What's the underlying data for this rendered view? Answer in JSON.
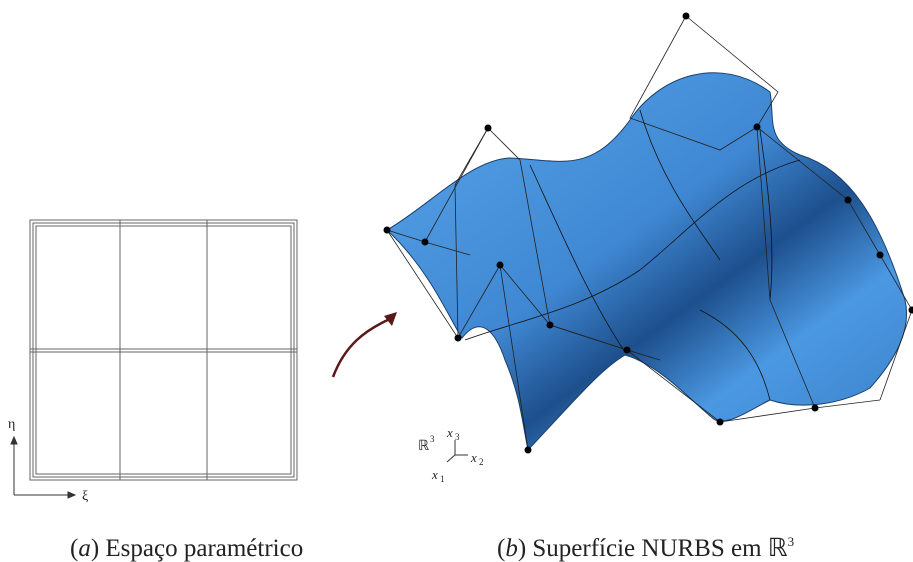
{
  "panel_a": {
    "axes": {
      "vertical": "η",
      "horizontal": "ξ"
    },
    "caption": {
      "open": "(",
      "label": "a",
      "close": ")",
      "text": "Espaço paramétrico"
    }
  },
  "panel_b": {
    "axes": {
      "space": "ℝ",
      "dimension": "3",
      "x1": {
        "symbol": "x",
        "index": "1"
      },
      "x2": {
        "symbol": "x",
        "index": "2"
      },
      "x3": {
        "symbol": "x",
        "index": "3"
      }
    },
    "caption": {
      "open": "(",
      "label": "b",
      "close": ")",
      "text": "Superfície NURBS em",
      "space": "ℝ",
      "dimension": "3"
    }
  }
}
